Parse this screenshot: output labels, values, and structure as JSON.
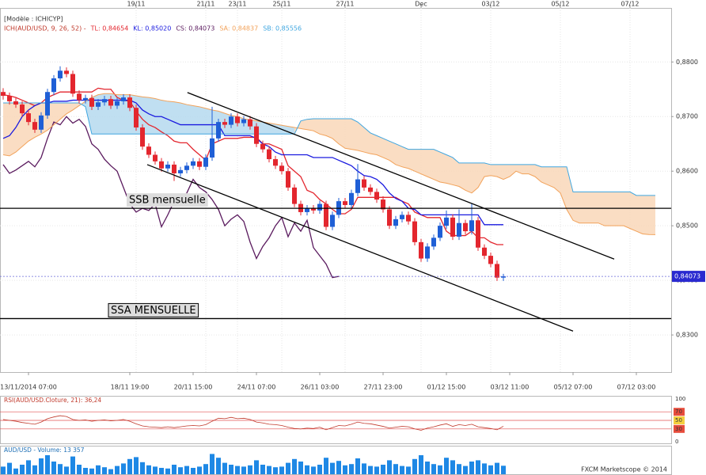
{
  "chart_data": {
    "type": "candlestick",
    "model_label": "[Modèle : ICHICYP]",
    "indicator_label": "ICH(AUD/USD, 9, 26, 52) -",
    "watermark": "FXCM Marketscope © 2014",
    "up_color": "#1f5fd6",
    "down_color": "#e3262e",
    "open": [
      0.8745,
      0.8738,
      0.8728,
      0.8722,
      0.8706,
      0.869,
      0.8676,
      0.8702,
      0.8745,
      0.877,
      0.8784,
      0.8778,
      0.8742,
      0.873,
      0.8734,
      0.8718,
      0.8726,
      0.8732,
      0.872,
      0.8728,
      0.8735,
      0.8716,
      0.868,
      0.8645,
      0.863,
      0.8618,
      0.8605,
      0.8612,
      0.8596,
      0.8602,
      0.861,
      0.8618,
      0.8608,
      0.8625,
      0.866,
      0.869,
      0.8685,
      0.87,
      0.8688,
      0.8695,
      0.8682,
      0.865,
      0.864,
      0.8622,
      0.861,
      0.86,
      0.857,
      0.854,
      0.8525,
      0.8532,
      0.8528,
      0.854,
      0.8498,
      0.852,
      0.8545,
      0.8538,
      0.856,
      0.8585,
      0.857,
      0.8562,
      0.8548,
      0.853,
      0.85,
      0.8512,
      0.852,
      0.8508,
      0.847,
      0.844,
      0.8462,
      0.8478,
      0.85,
      0.8515,
      0.848,
      0.8505,
      0.849,
      0.851,
      0.846,
      0.8445,
      0.843,
      0.8405
    ],
    "high": [
      0.8752,
      0.8744,
      0.8734,
      0.8728,
      0.8712,
      0.8696,
      0.8708,
      0.8751,
      0.8776,
      0.8792,
      0.879,
      0.8784,
      0.8748,
      0.874,
      0.874,
      0.8732,
      0.8738,
      0.8738,
      0.8734,
      0.8741,
      0.8741,
      0.8722,
      0.8686,
      0.8651,
      0.8636,
      0.8624,
      0.8618,
      0.8618,
      0.8608,
      0.8616,
      0.8624,
      0.8624,
      0.8631,
      0.8718,
      0.8696,
      0.8696,
      0.8706,
      0.8706,
      0.8701,
      0.8701,
      0.8688,
      0.8656,
      0.8646,
      0.8628,
      0.8616,
      0.8606,
      0.8576,
      0.8546,
      0.8538,
      0.8538,
      0.8546,
      0.8546,
      0.8526,
      0.8551,
      0.8551,
      0.8566,
      0.8613,
      0.8591,
      0.8576,
      0.8568,
      0.8554,
      0.8536,
      0.8518,
      0.8526,
      0.8526,
      0.8514,
      0.8476,
      0.8468,
      0.8484,
      0.8506,
      0.8528,
      0.8521,
      0.853,
      0.8511,
      0.854,
      0.8516,
      0.8466,
      0.8451,
      0.8436,
      0.8412
    ],
    "low": [
      0.8731,
      0.8722,
      0.8716,
      0.87,
      0.8684,
      0.867,
      0.867,
      0.8696,
      0.8739,
      0.8764,
      0.8772,
      0.8736,
      0.8724,
      0.8724,
      0.8712,
      0.8712,
      0.872,
      0.8714,
      0.8714,
      0.8722,
      0.871,
      0.8674,
      0.8639,
      0.8624,
      0.8612,
      0.8599,
      0.8599,
      0.8582,
      0.859,
      0.8596,
      0.8604,
      0.8602,
      0.8602,
      0.8619,
      0.8654,
      0.8679,
      0.8679,
      0.8682,
      0.8682,
      0.8676,
      0.8644,
      0.8634,
      0.8616,
      0.8604,
      0.8594,
      0.8564,
      0.8534,
      0.8519,
      0.8519,
      0.8522,
      0.8522,
      0.8492,
      0.8492,
      0.8514,
      0.8532,
      0.8532,
      0.8554,
      0.8564,
      0.8556,
      0.8542,
      0.8524,
      0.8494,
      0.8494,
      0.8506,
      0.8502,
      0.8464,
      0.8434,
      0.8434,
      0.8456,
      0.8472,
      0.8494,
      0.8474,
      0.8474,
      0.8484,
      0.8484,
      0.8454,
      0.8439,
      0.8424,
      0.8399,
      0.8399
    ],
    "close": [
      0.8738,
      0.8728,
      0.8722,
      0.8706,
      0.869,
      0.8676,
      0.8702,
      0.8745,
      0.877,
      0.8784,
      0.8778,
      0.8742,
      0.873,
      0.8734,
      0.8718,
      0.8726,
      0.8732,
      0.872,
      0.8728,
      0.8735,
      0.8716,
      0.868,
      0.8645,
      0.863,
      0.8618,
      0.8605,
      0.8612,
      0.8596,
      0.8602,
      0.861,
      0.8618,
      0.8608,
      0.8625,
      0.866,
      0.869,
      0.8685,
      0.87,
      0.8688,
      0.8695,
      0.8682,
      0.865,
      0.864,
      0.8622,
      0.861,
      0.86,
      0.857,
      0.854,
      0.8525,
      0.8532,
      0.8528,
      0.854,
      0.8498,
      0.852,
      0.8545,
      0.8538,
      0.856,
      0.8585,
      0.857,
      0.8562,
      0.8548,
      0.853,
      0.85,
      0.8512,
      0.852,
      0.8508,
      0.847,
      0.844,
      0.8462,
      0.8478,
      0.85,
      0.8515,
      0.848,
      0.8505,
      0.849,
      0.851,
      0.846,
      0.8445,
      0.843,
      0.8405,
      0.84073
    ],
    "lines": [
      {
        "name": "TL: 0,84654",
        "color": "#e3262e",
        "values": [
          0.874,
          0.8738,
          0.8735,
          0.873,
          0.8725,
          0.872,
          0.8725,
          0.8735,
          0.874,
          0.8745,
          0.8745,
          0.8745,
          0.8745,
          0.8745,
          0.8745,
          0.8752,
          0.875,
          0.875,
          0.8735,
          0.873,
          0.8728,
          0.871,
          0.8695,
          0.8685,
          0.868,
          0.8672,
          0.8665,
          0.8655,
          0.8652,
          0.8652,
          0.864,
          0.863,
          0.862,
          0.865,
          0.8655,
          0.866,
          0.866,
          0.866,
          0.8662,
          0.8662,
          0.8662,
          0.865,
          0.865,
          0.8645,
          0.864,
          0.861,
          0.86,
          0.859,
          0.8565,
          0.856,
          0.8548,
          0.854,
          0.853,
          0.8522,
          0.8522,
          0.853,
          0.8552,
          0.8552,
          0.8552,
          0.8552,
          0.8552,
          0.8552,
          0.8552,
          0.8545,
          0.854,
          0.8525,
          0.852,
          0.8515,
          0.8515,
          0.8515,
          0.849,
          0.8482,
          0.8482,
          0.8482,
          0.849,
          0.8478,
          0.8478,
          0.847,
          0.84654,
          0.84654
        ]
      },
      {
        "name": "KL: 0,85020",
        "color": "#1a1adf",
        "values": [
          0.866,
          0.8665,
          0.868,
          0.87,
          0.8712,
          0.872,
          0.8725,
          0.8725,
          0.8728,
          0.8728,
          0.8728,
          0.873,
          0.873,
          0.873,
          0.873,
          0.873,
          0.873,
          0.873,
          0.873,
          0.873,
          0.873,
          0.8725,
          0.8712,
          0.8705,
          0.87,
          0.87,
          0.8695,
          0.869,
          0.8685,
          0.8685,
          0.8685,
          0.8685,
          0.8685,
          0.8685,
          0.8685,
          0.8665,
          0.8665,
          0.8665,
          0.8665,
          0.8665,
          0.866,
          0.865,
          0.8645,
          0.8635,
          0.863,
          0.863,
          0.863,
          0.863,
          0.863,
          0.8625,
          0.8625,
          0.8625,
          0.8625,
          0.862,
          0.8615,
          0.861,
          0.86,
          0.8592,
          0.859,
          0.8585,
          0.8575,
          0.856,
          0.855,
          0.8545,
          0.8532,
          0.853,
          0.852,
          0.852,
          0.852,
          0.852,
          0.852,
          0.852,
          0.852,
          0.852,
          0.852,
          0.852,
          0.8502,
          0.8502,
          0.8502,
          0.8502
        ]
      },
      {
        "name": "CS: 0,84073",
        "color": "#5a1a5e",
        "values": [
          0.8612,
          0.8596,
          0.8602,
          0.861,
          0.8618,
          0.8608,
          0.8625,
          0.866,
          0.869,
          0.8685,
          0.87,
          0.8688,
          0.8695,
          0.8682,
          0.865,
          0.864,
          0.8622,
          0.861,
          0.86,
          0.857,
          0.854,
          0.8525,
          0.8532,
          0.8528,
          0.854,
          0.8498,
          0.852,
          0.8545,
          0.8538,
          0.856,
          0.8585,
          0.857,
          0.8562,
          0.8548,
          0.853,
          0.85,
          0.8512,
          0.852,
          0.8508,
          0.847,
          0.844,
          0.8462,
          0.8478,
          0.85,
          0.8515,
          0.848,
          0.8505,
          0.849,
          0.851,
          0.846,
          0.8445,
          0.843,
          0.8405,
          0.84073
        ]
      },
      {
        "name": "SA: 0,84837",
        "color": "#f2a25a",
        "values": [
          0.863,
          0.8628,
          0.8635,
          0.8645,
          0.8655,
          0.8662,
          0.8668,
          0.8675,
          0.8685,
          0.8695,
          0.8705,
          0.8712,
          0.872,
          0.8728,
          0.8735,
          0.874,
          0.8742,
          0.8742,
          0.874,
          0.874,
          0.874,
          0.8738,
          0.8736,
          0.8735,
          0.8733,
          0.873,
          0.8728,
          0.8727,
          0.8725,
          0.8722,
          0.872,
          0.8718,
          0.8715,
          0.8712,
          0.871,
          0.8706,
          0.8702,
          0.87,
          0.8696,
          0.8694,
          0.8692,
          0.869,
          0.8688,
          0.8686,
          0.8684,
          0.8682,
          0.868,
          0.8678,
          0.8676,
          0.8674,
          0.8668,
          0.8665,
          0.866,
          0.865,
          0.8642,
          0.864,
          0.8638,
          0.8635,
          0.8632,
          0.863,
          0.8625,
          0.862,
          0.8612,
          0.8608,
          0.8605,
          0.86,
          0.8595,
          0.859,
          0.8585,
          0.858,
          0.8578,
          0.8575,
          0.8572,
          0.8565,
          0.856,
          0.857,
          0.859,
          0.8592,
          0.859,
          0.8585,
          0.859,
          0.86,
          0.8595,
          0.8595,
          0.859,
          0.858,
          0.8575,
          0.857,
          0.856,
          0.853,
          0.851,
          0.8505,
          0.8505,
          0.8505,
          0.8505,
          0.85,
          0.85,
          0.85,
          0.85,
          0.8495,
          0.849,
          0.8485,
          0.8484,
          0.84837
        ]
      },
      {
        "name": "SB: 0,85556",
        "color": "#3fa6e0",
        "values": [
          0.8725,
          0.8725,
          0.8725,
          0.8725,
          0.8725,
          0.8725,
          0.8725,
          0.8725,
          0.8725,
          0.8725,
          0.8725,
          0.8725,
          0.8725,
          0.8718,
          0.8668,
          0.8668,
          0.8668,
          0.8668,
          0.8668,
          0.8668,
          0.8668,
          0.8668,
          0.8668,
          0.8668,
          0.8668,
          0.8668,
          0.8668,
          0.8668,
          0.8668,
          0.8668,
          0.8668,
          0.8668,
          0.8668,
          0.8668,
          0.8668,
          0.8668,
          0.8668,
          0.8668,
          0.8668,
          0.8668,
          0.8668,
          0.8668,
          0.8668,
          0.8668,
          0.8668,
          0.8668,
          0.8668,
          0.8692,
          0.8695,
          0.8696,
          0.8696,
          0.8696,
          0.8696,
          0.8696,
          0.8696,
          0.8696,
          0.869,
          0.868,
          0.867,
          0.8665,
          0.866,
          0.8655,
          0.865,
          0.8645,
          0.864,
          0.864,
          0.864,
          0.864,
          0.864,
          0.8635,
          0.863,
          0.8625,
          0.8615,
          0.8615,
          0.8615,
          0.8615,
          0.8615,
          0.8612,
          0.8612,
          0.8612,
          0.8612,
          0.8612,
          0.8612,
          0.8612,
          0.8612,
          0.8608,
          0.8608,
          0.8608,
          0.8608,
          0.8608,
          0.8562,
          0.8562,
          0.8562,
          0.8562,
          0.8562,
          0.8562,
          0.8562,
          0.8562,
          0.8562,
          0.8562,
          0.85556,
          0.85556,
          0.85556,
          0.85556
        ]
      }
    ],
    "cloud_up_color": "#b5d9ee",
    "cloud_down_color": "#f9d7b8",
    "xlim": [
      -0.5,
      105.5
    ],
    "xticks": [
      {
        "value": 4,
        "label": "13/11/2014 07:00"
      },
      {
        "value": 20,
        "label": "18/11 19:00"
      },
      {
        "value": 30,
        "label": "20/11 15:00"
      },
      {
        "value": 40,
        "label": "24/11 07:00"
      },
      {
        "value": 50,
        "label": "26/11 03:00"
      },
      {
        "value": 60,
        "label": "27/11 23:00"
      },
      {
        "value": 70,
        "label": "01/12 15:00"
      },
      {
        "value": 80,
        "label": "03/12 11:00"
      },
      {
        "value": 90,
        "label": "05/12 07:00"
      },
      {
        "value": 100,
        "label": "07/12 03:00"
      }
    ],
    "top_xticks": [
      {
        "value": 21,
        "label": "19/11"
      },
      {
        "value": 32,
        "label": "21/11"
      },
      {
        "value": 37,
        "label": "23/11"
      },
      {
        "value": 44,
        "label": "25/11"
      },
      {
        "value": 54,
        "label": "27/11"
      },
      {
        "value": 66,
        "label": "Dec"
      },
      {
        "value": 77,
        "label": "03/12"
      },
      {
        "value": 88,
        "label": "05/12"
      },
      {
        "value": 99,
        "label": "07/12"
      }
    ],
    "ylim": [
      0.8232,
      0.8899
    ],
    "yticks": [
      {
        "value": 0.83,
        "label": "0,8300"
      },
      {
        "value": 0.84,
        "label": "0,8400"
      },
      {
        "value": 0.85,
        "label": "0,8500"
      },
      {
        "value": 0.86,
        "label": "0,8600"
      },
      {
        "value": 0.87,
        "label": "0,8700"
      },
      {
        "value": 0.88,
        "label": "0,8800"
      }
    ],
    "last_price": {
      "value": 0.84073,
      "label": "0,84073"
    },
    "levels": [
      {
        "label": "SSB mensuelle",
        "value": 0.8532
      },
      {
        "label": "SSA MENSUELLE",
        "value": 0.833
      }
    ],
    "trendlines": [
      {
        "x": [
          29.1,
          96.5
        ],
        "y": [
          0.8744,
          0.8439
        ]
      },
      {
        "x": [
          22.75,
          90
        ],
        "y": [
          0.8612,
          0.8307
        ]
      }
    ],
    "rsi": {
      "label": "RSI(AUD/USD.Cloture, 21): 36,24",
      "color": "#c0392b",
      "values": [
        52,
        50,
        48,
        45,
        43,
        41,
        46,
        54,
        58,
        61,
        59,
        52,
        50,
        51,
        48,
        50,
        51,
        49,
        50,
        52,
        48,
        42,
        37,
        35,
        34,
        33,
        35,
        33,
        35,
        37,
        38,
        37,
        40,
        48,
        55,
        54,
        57,
        54,
        55,
        52,
        46,
        44,
        41,
        40,
        38,
        34,
        31,
        30,
        32,
        31,
        34,
        28,
        33,
        38,
        37,
        41,
        46,
        43,
        42,
        39,
        36,
        32,
        34,
        36,
        35,
        30,
        27,
        32,
        35,
        39,
        42,
        36,
        40,
        38,
        41,
        35,
        33,
        31,
        28,
        36.24
      ],
      "ylim": [
        0,
        100
      ],
      "yticks": [
        0,
        30,
        50,
        70,
        100
      ]
    },
    "volume": {
      "label": "AUD/USD - Volume: 13 357",
      "color": "#1e88e5",
      "ylim": [
        0,
        40000
      ],
      "values": [
        12000,
        18000,
        9000,
        15000,
        22000,
        14000,
        25000,
        30000,
        20000,
        16000,
        12000,
        28000,
        15000,
        10000,
        9000,
        14000,
        11000,
        8000,
        13000,
        17000,
        24000,
        27000,
        19000,
        14000,
        12000,
        10000,
        9000,
        15000,
        11000,
        13000,
        10000,
        12000,
        16000,
        32000,
        26000,
        18000,
        15000,
        13000,
        12000,
        14000,
        22000,
        15000,
        13000,
        11000,
        12000,
        18000,
        24000,
        20000,
        14000,
        12000,
        15000,
        26000,
        18000,
        21000,
        14000,
        16000,
        25000,
        17000,
        13000,
        12000,
        15000,
        22000,
        16000,
        13000,
        12000,
        24000,
        30000,
        20000,
        16000,
        14000,
        26000,
        22000,
        16000,
        13000,
        20000,
        22000,
        17000,
        14000,
        18000,
        13357
      ]
    }
  }
}
